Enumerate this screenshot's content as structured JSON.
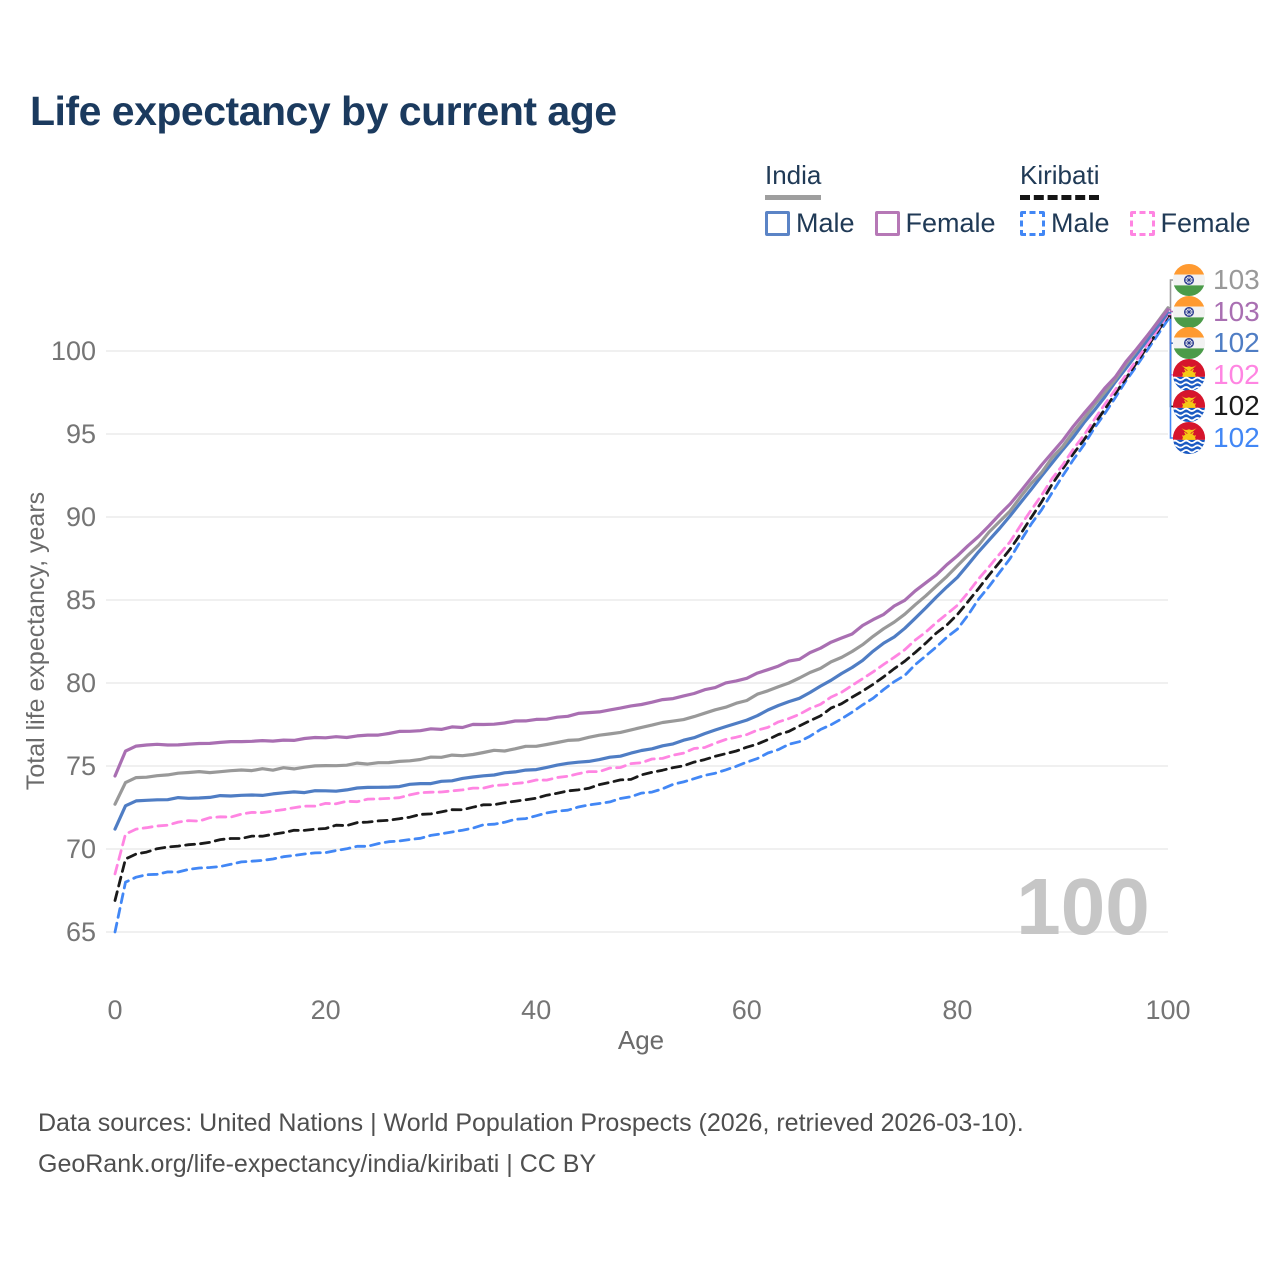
{
  "title": "Life expectancy by current age",
  "watermark": "100",
  "legend": {
    "groups": [
      {
        "label": "India",
        "style": "solid",
        "rule_color": "#9e9e9e",
        "items": [
          {
            "label": "Male",
            "color": "#5b84c6"
          },
          {
            "label": "Female",
            "color": "#b678b6"
          }
        ]
      },
      {
        "label": "Kiribati",
        "style": "dashed",
        "rule_color": "#151515",
        "items": [
          {
            "label": "Male",
            "color": "#4287f5"
          },
          {
            "label": "Female",
            "color": "#ff85e2"
          }
        ]
      }
    ]
  },
  "end_labels": [
    {
      "series": "india_both",
      "flag": "india",
      "value": "103",
      "color": "#999999"
    },
    {
      "series": "india_female",
      "flag": "india",
      "value": "103",
      "color": "#a96fb2"
    },
    {
      "series": "india_male",
      "flag": "india",
      "value": "102",
      "color": "#4f7dc4"
    },
    {
      "series": "kiribati_female",
      "flag": "kiribati",
      "value": "102",
      "color": "#ff85e2"
    },
    {
      "series": "kiribati_both",
      "flag": "kiribati",
      "value": "102",
      "color": "#1a1a1a"
    },
    {
      "series": "kiribati_male",
      "flag": "kiribati",
      "value": "102",
      "color": "#4287f5"
    }
  ],
  "chart_data": {
    "type": "line",
    "title": "Life expectancy by current age",
    "xlabel": "Age",
    "ylabel": "Total life expectancy, years",
    "x_ticks": [
      0,
      20,
      40,
      60,
      80,
      100
    ],
    "y_ticks": [
      65,
      70,
      75,
      80,
      85,
      90,
      95,
      100
    ],
    "xlim": [
      0,
      100
    ],
    "ylim": [
      63,
      104
    ],
    "grid": "horizontal",
    "legend_position": "top-right",
    "hovered_age": "100",
    "ages": [
      0,
      1,
      2,
      5,
      10,
      15,
      20,
      25,
      30,
      35,
      40,
      45,
      50,
      55,
      60,
      65,
      70,
      75,
      80,
      85,
      90,
      95,
      100
    ],
    "series": [
      {
        "key": "kiribati_male",
        "name": "Kiribati Male",
        "country": "Kiribati",
        "sex": "Male",
        "style": "dashed",
        "color": "#4287f5",
        "values": [
          65.0,
          68.0,
          68.3,
          68.6,
          69.0,
          69.4,
          69.8,
          70.3,
          70.8,
          71.4,
          72.0,
          72.6,
          73.3,
          74.2,
          75.2,
          76.5,
          78.2,
          80.5,
          83.3,
          87.5,
          92.5,
          97.2,
          101.9
        ]
      },
      {
        "key": "kiribati_both",
        "name": "Kiribati Both sexes",
        "country": "Kiribati",
        "sex": "Both",
        "style": "dashed",
        "color": "#1a1a1a",
        "values": [
          66.9,
          69.4,
          69.7,
          70.1,
          70.5,
          70.9,
          71.3,
          71.7,
          72.1,
          72.6,
          73.1,
          73.7,
          74.4,
          75.2,
          76.1,
          77.4,
          79.1,
          81.3,
          84.1,
          88.0,
          92.9,
          97.4,
          102.1
        ]
      },
      {
        "key": "kiribati_female",
        "name": "Kiribati Female",
        "country": "Kiribati",
        "sex": "Female",
        "style": "dashed",
        "color": "#ff85e2",
        "values": [
          68.5,
          70.9,
          71.2,
          71.5,
          71.9,
          72.3,
          72.7,
          73.0,
          73.4,
          73.7,
          74.1,
          74.6,
          75.2,
          76.0,
          76.9,
          78.1,
          79.8,
          82.0,
          84.7,
          88.5,
          93.2,
          97.6,
          102.2
        ]
      },
      {
        "key": "india_male",
        "name": "India Male",
        "country": "India",
        "sex": "Male",
        "style": "solid",
        "color": "#4f7dc4",
        "values": [
          71.2,
          72.6,
          72.9,
          73.0,
          73.2,
          73.3,
          73.5,
          73.7,
          74.0,
          74.4,
          74.8,
          75.3,
          75.9,
          76.7,
          77.8,
          79.1,
          80.9,
          83.3,
          86.4,
          90.0,
          94.0,
          98.1,
          102.3
        ]
      },
      {
        "key": "india_both",
        "name": "India Both sexes",
        "country": "India",
        "sex": "Both",
        "style": "solid",
        "color": "#999999",
        "values": [
          72.7,
          74.0,
          74.3,
          74.5,
          74.7,
          74.8,
          75.0,
          75.2,
          75.5,
          75.8,
          76.2,
          76.7,
          77.3,
          78.0,
          79.0,
          80.3,
          81.9,
          84.1,
          87.0,
          90.4,
          94.3,
          98.3,
          102.6
        ]
      },
      {
        "key": "india_female",
        "name": "India Female",
        "country": "India",
        "sex": "Female",
        "style": "solid",
        "color": "#a96fb2",
        "values": [
          74.4,
          75.9,
          76.2,
          76.3,
          76.4,
          76.5,
          76.7,
          76.9,
          77.2,
          77.5,
          77.8,
          78.2,
          78.7,
          79.4,
          80.3,
          81.5,
          83.0,
          85.0,
          87.6,
          90.8,
          94.6,
          98.5,
          102.5
        ]
      }
    ]
  },
  "footer": {
    "line1": "Data sources: United Nations | World Population Prospects (2026, retrieved 2026-03-10).",
    "line2": "GeoRank.org/life-expectancy/india/kiribati | CC BY"
  }
}
